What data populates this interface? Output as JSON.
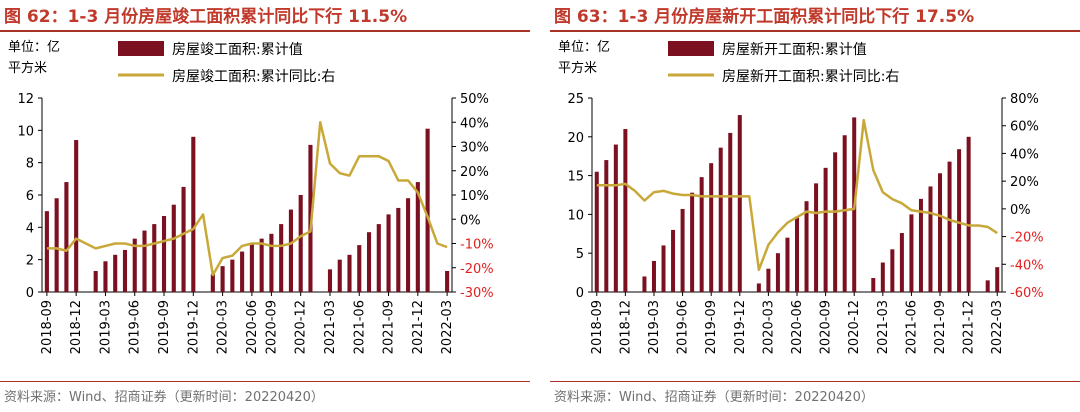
{
  "panels": [
    {
      "title": "图 62：1-3 月份房屋竣工面积累计同比下行 11.5%",
      "source": "资料来源：Wind、招商证券（更新时间：20220420）",
      "unit_label": [
        "单位：亿",
        "平方米"
      ],
      "chart_data": {
        "type": "bar+line",
        "title": "图 62：1-3 月份房屋竣工面积累计同比下行 11.5%",
        "x_tick_labels": [
          "2018-09",
          "2018-12",
          "2019-03",
          "2019-06",
          "2019-09",
          "2019-12",
          "2020-03",
          "2020-06",
          "2020-09",
          "2020-12",
          "2021-03",
          "2021-06",
          "2021-09",
          "2021-12",
          "2022-03"
        ],
        "series": [
          {
            "name": "房屋竣工面积:累计值",
            "axis": "left",
            "kind": "bar",
            "color": "#7b1020",
            "values": [
              5.0,
              5.8,
              6.8,
              9.4,
              null,
              1.3,
              1.9,
              2.3,
              2.6,
              3.3,
              3.8,
              4.2,
              4.7,
              5.4,
              6.5,
              9.6,
              null,
              1.1,
              1.6,
              2.0,
              2.5,
              3.0,
              3.3,
              3.6,
              4.2,
              5.1,
              6.0,
              9.1,
              null,
              1.4,
              2.0,
              2.3,
              2.9,
              3.7,
              4.2,
              4.8,
              5.2,
              5.8,
              6.8,
              10.1,
              null,
              1.3
            ]
          },
          {
            "name": "房屋竣工面积:累计同比:右",
            "axis": "right",
            "kind": "line",
            "color": "#c9a83a",
            "values": [
              -12,
              -12,
              -13,
              -8,
              -10,
              -12,
              -11,
              -10,
              -10,
              -11,
              -11,
              -10,
              -9,
              -8,
              -6,
              -4,
              2,
              -23,
              -16,
              -15,
              -11,
              -10,
              -10,
              -11,
              -11,
              -10,
              -7,
              -5,
              40,
              23,
              19,
              18,
              26,
              26,
              26,
              24,
              16,
              16,
              11,
              1,
              -10,
              -11.5
            ]
          }
        ],
        "left_axis": {
          "ylim": [
            0,
            12
          ],
          "ticks": [
            0,
            2,
            4,
            6,
            8,
            10,
            12
          ]
        },
        "right_axis": {
          "ylim": [
            -30,
            50
          ],
          "ticks": [
            "-30%",
            "-20%",
            "-10%",
            "0%",
            "10%",
            "20%",
            "30%",
            "40%",
            "50%"
          ]
        },
        "legend_placement": "top"
      }
    },
    {
      "title": "图 63：1-3 月份房屋新开工面积累计同比下行 17.5%",
      "source": "资料来源：Wind、招商证券（更新时间：20220420）",
      "unit_label": [
        "单位：亿",
        "平方米"
      ],
      "chart_data": {
        "type": "bar+line",
        "title": "图 63：1-3 月份房屋新开工面积累计同比下行 17.5%",
        "x_tick_labels": [
          "2018-09",
          "2018-12",
          "2019-03",
          "2019-06",
          "2019-09",
          "2019-12",
          "2020-03",
          "2020-06",
          "2020-09",
          "2020-12",
          "2021-03",
          "2021-06",
          "2021-09",
          "2021-12",
          "2022-03"
        ],
        "series": [
          {
            "name": "房屋新开工面积:累计值",
            "axis": "left",
            "kind": "bar",
            "color": "#7b1020",
            "values": [
              15.5,
              17.0,
              19.0,
              21.0,
              null,
              2.0,
              4.0,
              6.0,
              8.0,
              10.7,
              12.8,
              14.8,
              16.6,
              18.6,
              20.5,
              22.8,
              null,
              1.1,
              3.0,
              5.0,
              7.0,
              9.7,
              11.7,
              14.0,
              16.0,
              18.0,
              20.2,
              22.5,
              null,
              1.8,
              3.8,
              5.5,
              7.6,
              10.0,
              12.0,
              13.6,
              15.3,
              16.8,
              18.4,
              20.0,
              null,
              1.5,
              3.2
            ]
          },
          {
            "name": "房屋新开工面积:累计同比:右",
            "axis": "right",
            "kind": "line",
            "color": "#c9a83a",
            "values": [
              17,
              17,
              17,
              18,
              13,
              6,
              12,
              13,
              11,
              10,
              10,
              9,
              9,
              9,
              9,
              9,
              9,
              -44,
              -26,
              -17,
              -10,
              -6,
              -2,
              -3,
              -2,
              -2,
              -1,
              0,
              64,
              28,
              12,
              7,
              4,
              -1,
              -2,
              -3,
              -5,
              -8,
              -10,
              -12,
              -12,
              -13,
              -17.5
            ]
          }
        ],
        "left_axis": {
          "ylim": [
            0,
            25
          ],
          "ticks": [
            0,
            5,
            10,
            15,
            20,
            25
          ]
        },
        "right_axis": {
          "ylim": [
            -60,
            80
          ],
          "ticks": [
            "-60%",
            "-40%",
            "-20%",
            "0%",
            "20%",
            "40%",
            "60%",
            "80%"
          ]
        },
        "legend_placement": "top"
      }
    }
  ]
}
